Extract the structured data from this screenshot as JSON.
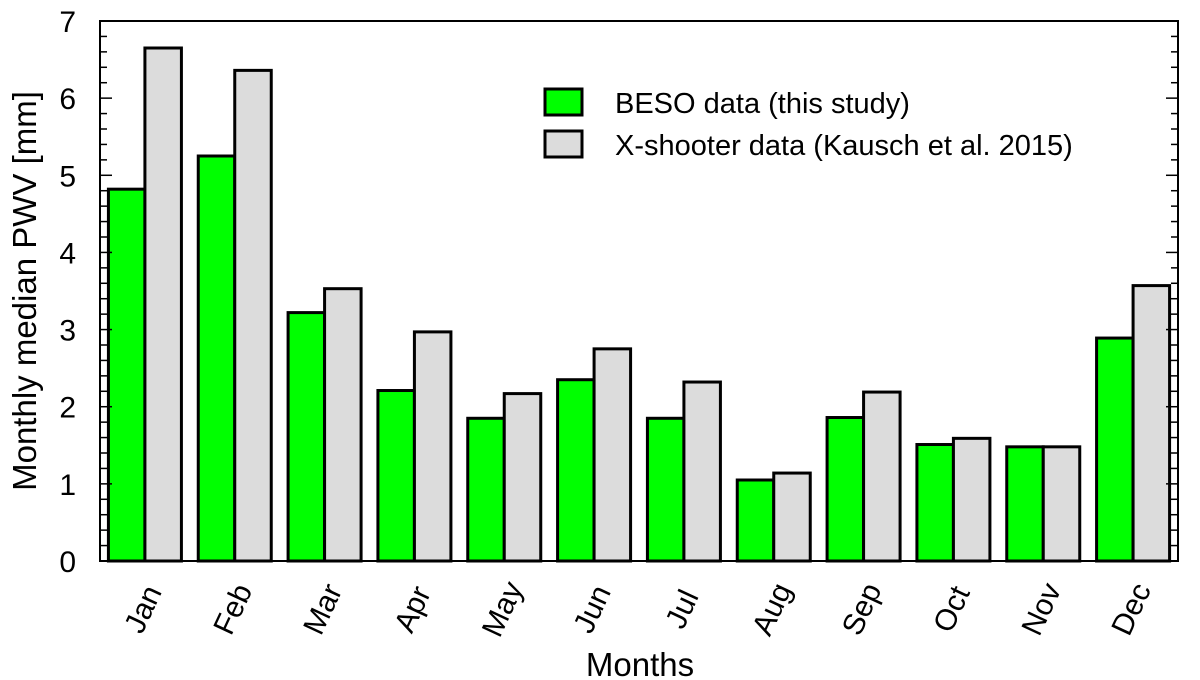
{
  "chart_data": {
    "type": "bar",
    "title": "",
    "xlabel": "Months",
    "ylabel": "Monthly median PWV [mm]",
    "ylim": [
      0,
      7
    ],
    "yticks": [
      "0",
      "1",
      "2",
      "3",
      "4",
      "5",
      "6",
      "7"
    ],
    "categories": [
      "Jan",
      "Feb",
      "Mar",
      "Apr",
      "May",
      "Jun",
      "Jul",
      "Aug",
      "Sep",
      "Oct",
      "Nov",
      "Dec"
    ],
    "series": [
      {
        "name": "BESO data (this study)",
        "color": "#00ff00",
        "values": [
          4.82,
          5.25,
          3.22,
          2.21,
          1.85,
          2.35,
          1.85,
          1.05,
          1.86,
          1.51,
          1.48,
          2.89
        ]
      },
      {
        "name": "X-shooter data (Kausch et al. 2015)",
        "color": "#dcdcdc",
        "values": [
          6.65,
          6.36,
          3.53,
          2.97,
          2.17,
          2.75,
          2.32,
          1.14,
          2.19,
          1.59,
          1.48,
          3.57
        ]
      }
    ],
    "grid": false,
    "legend_position": "top-right"
  }
}
